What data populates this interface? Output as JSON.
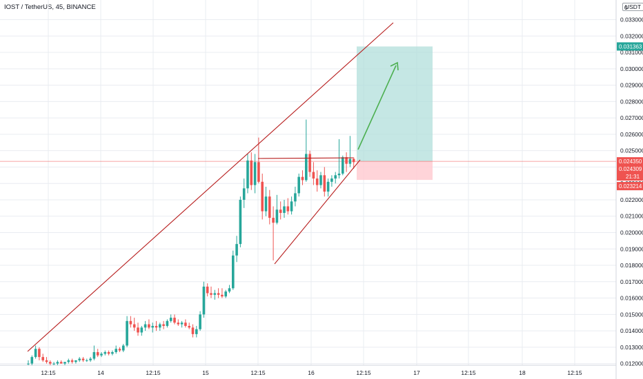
{
  "header": {
    "title": "IOST / TetherUS, 45, BINANCE",
    "currency_label": "USDT",
    "top_price_label": "0"
  },
  "colors": {
    "up": "#26a69a",
    "down": "#ef5350",
    "trendline": "#b71c1c",
    "grid": "#e9ecf1",
    "target_zone": "#b2dfdb",
    "stop_zone": "#ffcdd2",
    "arrow": "#4caf50"
  },
  "chart_data": {
    "type": "candlestick",
    "symbol": "IOST / TetherUS",
    "interval": "45",
    "exchange": "BINANCE",
    "y_axis": {
      "min": 0.0119,
      "max": 0.0342,
      "tick_labels": [
        "0.033000",
        "0.032000",
        "0.031000",
        "0.030000",
        "0.029000",
        "0.028000",
        "0.027000",
        "0.026000",
        "0.025000",
        "0.024000",
        "0.023000",
        "0.022000",
        "0.021000",
        "0.020000",
        "0.019000",
        "0.018000",
        "0.017000",
        "0.016000",
        "0.015000",
        "0.014000",
        "0.013000",
        "0.012000"
      ]
    },
    "x_axis": {
      "tick_labels": [
        "12:15",
        "14",
        "12:15",
        "15",
        "12:15",
        "16",
        "12:15",
        "17",
        "12:15",
        "18",
        "12:15"
      ]
    },
    "price_labels": [
      {
        "value": "0.031363",
        "kind": "target"
      },
      {
        "value": "0.024350",
        "kind": "current"
      },
      {
        "value": "0.024309",
        "kind": "last"
      },
      {
        "value": "21:31",
        "kind": "countdown"
      },
      {
        "value": "0.023214",
        "kind": "stop"
      }
    ],
    "candles": [
      [
        0.012,
        0.0122,
        0.0119,
        0.012
      ],
      [
        0.012,
        0.0125,
        0.0119,
        0.0124
      ],
      [
        0.0124,
        0.0131,
        0.0123,
        0.0129
      ],
      [
        0.0129,
        0.013,
        0.0122,
        0.0124
      ],
      [
        0.0124,
        0.0126,
        0.0121,
        0.0122
      ],
      [
        0.0122,
        0.0124,
        0.012,
        0.0121
      ],
      [
        0.0121,
        0.0122,
        0.0119,
        0.012
      ],
      [
        0.012,
        0.0121,
        0.0119,
        0.012
      ],
      [
        0.012,
        0.0122,
        0.0119,
        0.0121
      ],
      [
        0.0121,
        0.0122,
        0.012,
        0.012
      ],
      [
        0.012,
        0.0121,
        0.0119,
        0.0121
      ],
      [
        0.0121,
        0.0123,
        0.012,
        0.0122
      ],
      [
        0.0122,
        0.0123,
        0.012,
        0.0121
      ],
      [
        0.0121,
        0.0122,
        0.012,
        0.0122
      ],
      [
        0.0122,
        0.0124,
        0.0121,
        0.0123
      ],
      [
        0.0123,
        0.0124,
        0.0121,
        0.0122
      ],
      [
        0.0122,
        0.0123,
        0.0121,
        0.0122
      ],
      [
        0.0122,
        0.0124,
        0.0121,
        0.0123
      ],
      [
        0.0123,
        0.0131,
        0.0122,
        0.0127
      ],
      [
        0.0127,
        0.0129,
        0.0124,
        0.0125
      ],
      [
        0.0125,
        0.0127,
        0.0124,
        0.0126
      ],
      [
        0.0126,
        0.0128,
        0.0125,
        0.0127
      ],
      [
        0.0127,
        0.0128,
        0.0125,
        0.0126
      ],
      [
        0.0126,
        0.0128,
        0.0125,
        0.0127
      ],
      [
        0.0127,
        0.0131,
        0.0126,
        0.0129
      ],
      [
        0.0129,
        0.013,
        0.0127,
        0.0128
      ],
      [
        0.0128,
        0.0132,
        0.0127,
        0.0131
      ],
      [
        0.0131,
        0.0149,
        0.013,
        0.0146
      ],
      [
        0.0146,
        0.0149,
        0.0142,
        0.0144
      ],
      [
        0.0144,
        0.0148,
        0.014,
        0.0142
      ],
      [
        0.0142,
        0.0145,
        0.0137,
        0.0139
      ],
      [
        0.0139,
        0.0143,
        0.0137,
        0.0142
      ],
      [
        0.0142,
        0.0146,
        0.014,
        0.0144
      ],
      [
        0.0144,
        0.0147,
        0.0141,
        0.0142
      ],
      [
        0.0142,
        0.0145,
        0.0139,
        0.0143
      ],
      [
        0.0143,
        0.0146,
        0.014,
        0.0142
      ],
      [
        0.0142,
        0.0145,
        0.014,
        0.0144
      ],
      [
        0.0144,
        0.0146,
        0.0141,
        0.0143
      ],
      [
        0.0143,
        0.0147,
        0.0142,
        0.0146
      ],
      [
        0.0146,
        0.015,
        0.0145,
        0.0148
      ],
      [
        0.0148,
        0.015,
        0.0144,
        0.0145
      ],
      [
        0.0145,
        0.0147,
        0.0143,
        0.0144
      ],
      [
        0.0144,
        0.0146,
        0.0142,
        0.0145
      ],
      [
        0.0145,
        0.0147,
        0.0142,
        0.0143
      ],
      [
        0.0143,
        0.0145,
        0.0141,
        0.0142
      ],
      [
        0.0142,
        0.0144,
        0.0136,
        0.0138
      ],
      [
        0.0138,
        0.0143,
        0.0136,
        0.0141
      ],
      [
        0.0141,
        0.0152,
        0.014,
        0.015
      ],
      [
        0.015,
        0.017,
        0.0148,
        0.0167
      ],
      [
        0.0167,
        0.0169,
        0.0161,
        0.0163
      ],
      [
        0.0163,
        0.0167,
        0.016,
        0.0162
      ],
      [
        0.0162,
        0.0165,
        0.0159,
        0.0163
      ],
      [
        0.0163,
        0.0166,
        0.016,
        0.0162
      ],
      [
        0.0162,
        0.0166,
        0.016,
        0.0161
      ],
      [
        0.0161,
        0.0165,
        0.016,
        0.0164
      ],
      [
        0.0164,
        0.0168,
        0.0163,
        0.0166
      ],
      [
        0.0166,
        0.0189,
        0.0165,
        0.0186
      ],
      [
        0.0186,
        0.0198,
        0.0182,
        0.0193
      ],
      [
        0.0193,
        0.0222,
        0.0191,
        0.022
      ],
      [
        0.022,
        0.0233,
        0.0215,
        0.0227
      ],
      [
        0.0227,
        0.0248,
        0.0224,
        0.0244
      ],
      [
        0.0244,
        0.0249,
        0.0226,
        0.0229
      ],
      [
        0.0229,
        0.0248,
        0.0224,
        0.0243
      ],
      [
        0.0243,
        0.0258,
        0.023,
        0.0231
      ],
      [
        0.0231,
        0.0236,
        0.0208,
        0.0213
      ],
      [
        0.0213,
        0.0228,
        0.021,
        0.0222
      ],
      [
        0.0222,
        0.0226,
        0.0205,
        0.0209
      ],
      [
        0.0209,
        0.0216,
        0.0183,
        0.0206
      ],
      [
        0.0206,
        0.0223,
        0.0205,
        0.0214
      ],
      [
        0.0214,
        0.0219,
        0.0208,
        0.0212
      ],
      [
        0.0212,
        0.022,
        0.0209,
        0.0216
      ],
      [
        0.0216,
        0.0221,
        0.0211,
        0.0213
      ],
      [
        0.0213,
        0.0222,
        0.0211,
        0.0219
      ],
      [
        0.0219,
        0.0228,
        0.0216,
        0.0224
      ],
      [
        0.0224,
        0.0236,
        0.0222,
        0.0234
      ],
      [
        0.0234,
        0.0238,
        0.0229,
        0.0232
      ],
      [
        0.0232,
        0.0269,
        0.0231,
        0.0248
      ],
      [
        0.0248,
        0.025,
        0.0234,
        0.0237
      ],
      [
        0.0237,
        0.0243,
        0.0229,
        0.0233
      ],
      [
        0.0233,
        0.0238,
        0.0225,
        0.0229
      ],
      [
        0.0229,
        0.0237,
        0.0227,
        0.0235
      ],
      [
        0.0235,
        0.024,
        0.0222,
        0.0225
      ],
      [
        0.0225,
        0.0233,
        0.0222,
        0.0231
      ],
      [
        0.0231,
        0.0235,
        0.0228,
        0.0233
      ],
      [
        0.0233,
        0.0237,
        0.023,
        0.0235
      ],
      [
        0.0235,
        0.0257,
        0.0233,
        0.0236
      ],
      [
        0.0236,
        0.0247,
        0.0235,
        0.0246
      ],
      [
        0.0246,
        0.0249,
        0.0237,
        0.0242
      ],
      [
        0.0242,
        0.0259,
        0.024,
        0.0245
      ],
      [
        0.0245,
        0.0246,
        0.0239,
        0.0243
      ]
    ],
    "drawings": [
      {
        "type": "trendline",
        "label": "upper"
      },
      {
        "type": "trendline",
        "label": "lower"
      },
      {
        "type": "horizontal",
        "label": "resistance"
      },
      {
        "type": "long_position",
        "entry": 0.02435,
        "target": 0.031363,
        "stop": 0.023214
      },
      {
        "type": "arrow",
        "direction": "up"
      }
    ]
  }
}
